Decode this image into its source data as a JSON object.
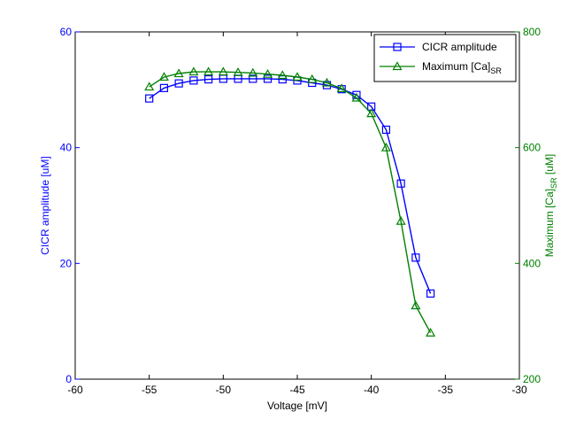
{
  "chart_data": {
    "type": "line",
    "xlabel": "Voltage [mV]",
    "xlim": [
      -60,
      -30
    ],
    "xticks": [
      -60,
      -55,
      -50,
      -45,
      -40,
      -35,
      -30
    ],
    "y_left": {
      "label": "CICR amplitude [uM]",
      "lim": [
        0,
        60
      ],
      "ticks": [
        0,
        20,
        40,
        60
      ],
      "color": "#0000ff"
    },
    "y_right": {
      "label": "Maximum [Ca]",
      "label_sub": "SR",
      "label_suffix": " [uM]",
      "lim": [
        200,
        800
      ],
      "ticks": [
        200,
        400,
        600,
        800
      ],
      "color": "#008000"
    },
    "legend_position": "top-right",
    "x": [
      -55,
      -54,
      -53,
      -52,
      -51,
      -50,
      -49,
      -48,
      -47,
      -46,
      -45,
      -44,
      -43,
      -42,
      -41,
      -40,
      -39,
      -38,
      -37,
      -36
    ],
    "series": [
      {
        "name": "CICR amplitude",
        "axis": "left",
        "color": "#0000ff",
        "marker": "square",
        "values": [
          48.5,
          50.3,
          51.1,
          51.6,
          51.8,
          51.9,
          51.9,
          51.9,
          51.9,
          51.8,
          51.6,
          51.2,
          50.8,
          50.1,
          49.1,
          47.1,
          43.1,
          33.8,
          21.0,
          14.8
        ]
      },
      {
        "name": "Maximum [Ca]",
        "name_sub": "SR",
        "axis": "right",
        "color": "#008000",
        "marker": "triangle",
        "values": [
          705,
          722,
          728,
          731,
          731,
          731,
          730,
          729,
          727,
          725,
          722,
          718,
          712,
          702,
          686,
          659,
          600,
          473,
          327,
          280
        ]
      }
    ]
  }
}
